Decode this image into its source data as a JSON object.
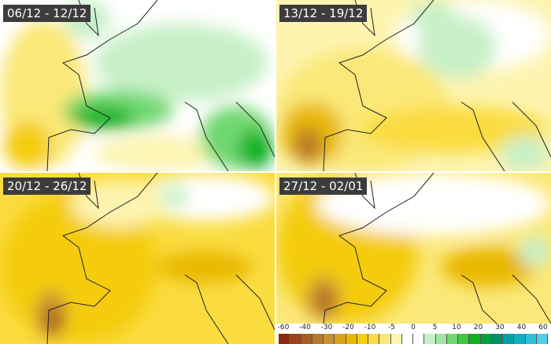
{
  "panels": [
    {
      "title": "06/12 - 12/12",
      "scene": "green"
    },
    {
      "title": "13/12 - 19/12",
      "scene": "mixed"
    },
    {
      "title": "20/12 - 26/12",
      "scene": "yellow"
    },
    {
      "title": "27/12 - 02/01",
      "scene": "yellow2"
    }
  ],
  "legend": {
    "labels": [
      "-60",
      "-40",
      "-30",
      "-20",
      "-10",
      "-5",
      "0",
      "5",
      "10",
      "20",
      "30",
      "40",
      "60"
    ],
    "colors": [
      "#8b2a10",
      "#9c4418",
      "#a85e22",
      "#b8782c",
      "#c89030",
      "#d8a420",
      "#e8b800",
      "#f4cc10",
      "#fadc40",
      "#fbe878",
      "#fdf4b0",
      "#ffffff",
      "#ffffff",
      "#c8f0c8",
      "#a0e6a0",
      "#70d870",
      "#40c840",
      "#10b020",
      "#00a040",
      "#009068",
      "#00a0a0",
      "#10b0c0",
      "#30c0d8",
      "#50d0e8"
    ]
  }
}
